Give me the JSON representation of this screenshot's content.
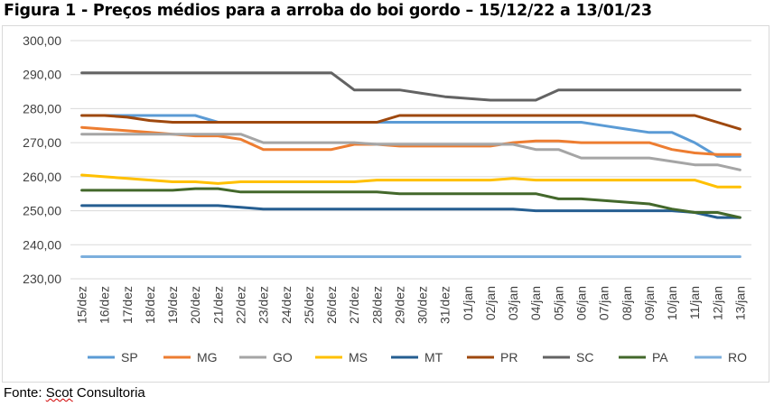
{
  "title": "Figura 1 - Preços médios para a arroba do boi gordo – 15/12/22 a 13/01/23",
  "source": {
    "prefix": "Fonte: ",
    "name": "Scot",
    "suffix": " Consultoria"
  },
  "chart_data": {
    "type": "line",
    "title": "Figura 1 - Preços médios para a arroba do boi gordo – 15/12/22 a 13/01/23",
    "xlabel": "",
    "ylabel": "",
    "ylim": [
      230,
      300
    ],
    "yticks": [
      "230,00",
      "240,00",
      "250,00",
      "260,00",
      "270,00",
      "280,00",
      "290,00",
      "300,00"
    ],
    "grid": true,
    "legend": "bottom",
    "categories": [
      "15/dez",
      "16/dez",
      "17/dez",
      "18/dez",
      "19/dez",
      "20/dez",
      "21/dez",
      "22/dez",
      "23/dez",
      "24/dez",
      "25/dez",
      "26/dez",
      "27/dez",
      "28/dez",
      "29/dez",
      "30/dez",
      "31/dez",
      "01/jan",
      "02/jan",
      "03/jan",
      "04/jan",
      "05/jan",
      "06/jan",
      "07/jan",
      "08/jan",
      "09/jan",
      "10/jan",
      "11/jan",
      "12/jan",
      "13/jan"
    ],
    "series": [
      {
        "name": "SP",
        "color": "#5b9bd5",
        "values": [
          278,
          278,
          278,
          278,
          278,
          278,
          276,
          276,
          276,
          276,
          276,
          276,
          276,
          276,
          276,
          276,
          276,
          276,
          276,
          276,
          276,
          276,
          276,
          275,
          274,
          273,
          273,
          270,
          266,
          266
        ]
      },
      {
        "name": "MG",
        "color": "#ed7d31",
        "values": [
          274.5,
          274,
          273.5,
          273,
          272.5,
          272,
          272,
          271,
          268,
          268,
          268,
          268,
          269.5,
          269.5,
          269,
          269,
          269,
          269,
          269,
          270,
          270.5,
          270.5,
          270,
          270,
          270,
          270,
          268,
          267,
          266.5,
          266.5
        ]
      },
      {
        "name": "GO",
        "color": "#a5a5a5",
        "values": [
          272.5,
          272.5,
          272.5,
          272.5,
          272.5,
          272.5,
          272.5,
          272.5,
          270,
          270,
          270,
          270,
          270,
          269.5,
          269.5,
          269.5,
          269.5,
          269.5,
          269.5,
          269.5,
          268,
          268,
          265.5,
          265.5,
          265.5,
          265.5,
          264.5,
          263.5,
          263.5,
          262
        ]
      },
      {
        "name": "MS",
        "color": "#ffc000",
        "values": [
          260.5,
          260,
          259.5,
          259,
          258.5,
          258.5,
          258,
          258.5,
          258.5,
          258.5,
          258.5,
          258.5,
          258.5,
          259,
          259,
          259,
          259,
          259,
          259,
          259.5,
          259,
          259,
          259,
          259,
          259,
          259,
          259,
          259,
          257,
          257
        ]
      },
      {
        "name": "MT",
        "color": "#255e91",
        "values": [
          251.5,
          251.5,
          251.5,
          251.5,
          251.5,
          251.5,
          251.5,
          251,
          250.5,
          250.5,
          250.5,
          250.5,
          250.5,
          250.5,
          250.5,
          250.5,
          250.5,
          250.5,
          250.5,
          250.5,
          250,
          250,
          250,
          250,
          250,
          250,
          250,
          249.5,
          248,
          248
        ]
      },
      {
        "name": "PR",
        "color": "#9e480e",
        "values": [
          278,
          278,
          277.5,
          276.5,
          276,
          276,
          276,
          276,
          276,
          276,
          276,
          276,
          276,
          276,
          278,
          278,
          278,
          278,
          278,
          278,
          278,
          278,
          278,
          278,
          278,
          278,
          278,
          278,
          276,
          274
        ]
      },
      {
        "name": "SC",
        "color": "#636363",
        "values": [
          290.5,
          290.5,
          290.5,
          290.5,
          290.5,
          290.5,
          290.5,
          290.5,
          290.5,
          290.5,
          290.5,
          290.5,
          285.5,
          285.5,
          285.5,
          284.5,
          283.5,
          283,
          282.5,
          282.5,
          282.5,
          285.5,
          285.5,
          285.5,
          285.5,
          285.5,
          285.5,
          285.5,
          285.5,
          285.5
        ]
      },
      {
        "name": "PA",
        "color": "#43682b",
        "values": [
          256,
          256,
          256,
          256,
          256,
          256.5,
          256.5,
          255.5,
          255.5,
          255.5,
          255.5,
          255.5,
          255.5,
          255.5,
          255,
          255,
          255,
          255,
          255,
          255,
          255,
          253.5,
          253.5,
          253,
          252.5,
          252,
          250.5,
          249.5,
          249.5,
          248
        ]
      },
      {
        "name": "RO",
        "color": "#7cafdd",
        "values": [
          236.5,
          236.5,
          236.5,
          236.5,
          236.5,
          236.5,
          236.5,
          236.5,
          236.5,
          236.5,
          236.5,
          236.5,
          236.5,
          236.5,
          236.5,
          236.5,
          236.5,
          236.5,
          236.5,
          236.5,
          236.5,
          236.5,
          236.5,
          236.5,
          236.5,
          236.5,
          236.5,
          236.5,
          236.5,
          236.5
        ]
      }
    ]
  }
}
